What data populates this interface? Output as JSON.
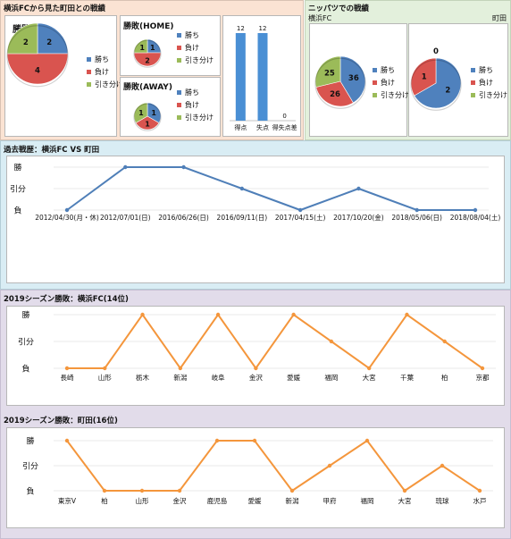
{
  "colors": {
    "win": "#4f81bd",
    "loss": "#d9544f",
    "draw": "#9bbb59",
    "bar": "#4a8fd4",
    "line_blue": "#4f7fb8",
    "line_orange": "#f4963c",
    "bg_peach": "#fbe3d3",
    "bg_green": "#e3f0dc",
    "bg_blue": "#d9edf4",
    "bg_purple": "#e2dcea"
  },
  "headers": {
    "top_left": "横浜FCから見た町田との戦績",
    "top_right": "ニッパツでの戦績",
    "history": "過去戦歴：横浜FC VS 町田",
    "yfc2019": "2019シーズン勝敗：横浜FC(14位)",
    "machida2019": "2019シーズン勝敗：町田(16位)"
  },
  "legend": {
    "win": "勝ち",
    "loss": "負け",
    "draw": "引き分け"
  },
  "yaxis": [
    "勝",
    "引分",
    "負"
  ],
  "chart_data": [
    {
      "id": "total",
      "type": "pie",
      "title": "勝敗",
      "categories": [
        "勝ち",
        "負け",
        "引き分け"
      ],
      "values": [
        2,
        4,
        2
      ]
    },
    {
      "id": "home",
      "type": "pie",
      "title": "勝敗(HOME)",
      "categories": [
        "勝ち",
        "負け",
        "引き分け"
      ],
      "values": [
        1,
        2,
        1
      ]
    },
    {
      "id": "away",
      "type": "pie",
      "title": "勝敗(AWAY)",
      "categories": [
        "勝ち",
        "負け",
        "引き分け"
      ],
      "values": [
        1,
        1,
        1
      ]
    },
    {
      "id": "goals",
      "type": "bar",
      "categories": [
        "得点",
        "失点",
        "得失点差"
      ],
      "values": [
        12,
        12,
        0
      ],
      "ylim": [
        0,
        12
      ]
    },
    {
      "id": "nippatsu_yfc",
      "type": "pie",
      "title": "横浜FC",
      "categories": [
        "勝ち",
        "負け",
        "引き分け"
      ],
      "values": [
        36,
        26,
        25
      ]
    },
    {
      "id": "nippatsu_machida",
      "type": "pie",
      "title": "町田",
      "categories": [
        "勝ち",
        "負け",
        "引き分け"
      ],
      "values": [
        2,
        1,
        0
      ]
    },
    {
      "id": "history",
      "type": "line",
      "categories": [
        "2012/04/30(月・休)",
        "2012/07/01(日)",
        "2016/06/26(日)",
        "2016/09/11(日)",
        "2017/04/15(土)",
        "2017/10/20(金)",
        "2018/05/06(日)",
        "2018/08/04(土)"
      ],
      "values": [
        "負",
        "勝",
        "勝",
        "引分",
        "負",
        "引分",
        "負",
        "負"
      ]
    },
    {
      "id": "yfc2019",
      "type": "line",
      "categories": [
        "長崎",
        "山形",
        "栃木",
        "新潟",
        "岐阜",
        "金沢",
        "愛媛",
        "福岡",
        "大宮",
        "千葉",
        "柏",
        "京都"
      ],
      "values": [
        "負",
        "負",
        "勝",
        "負",
        "勝",
        "負",
        "勝",
        "引分",
        "負",
        "勝",
        "引分",
        "負"
      ]
    },
    {
      "id": "machida2019",
      "type": "line",
      "categories": [
        "東京V",
        "柏",
        "山形",
        "金沢",
        "鹿児島",
        "愛媛",
        "新潟",
        "甲府",
        "福岡",
        "大宮",
        "琉球",
        "水戸"
      ],
      "values": [
        "勝",
        "負",
        "負",
        "負",
        "勝",
        "勝",
        "負",
        "引分",
        "勝",
        "負",
        "引分",
        "負"
      ]
    }
  ]
}
